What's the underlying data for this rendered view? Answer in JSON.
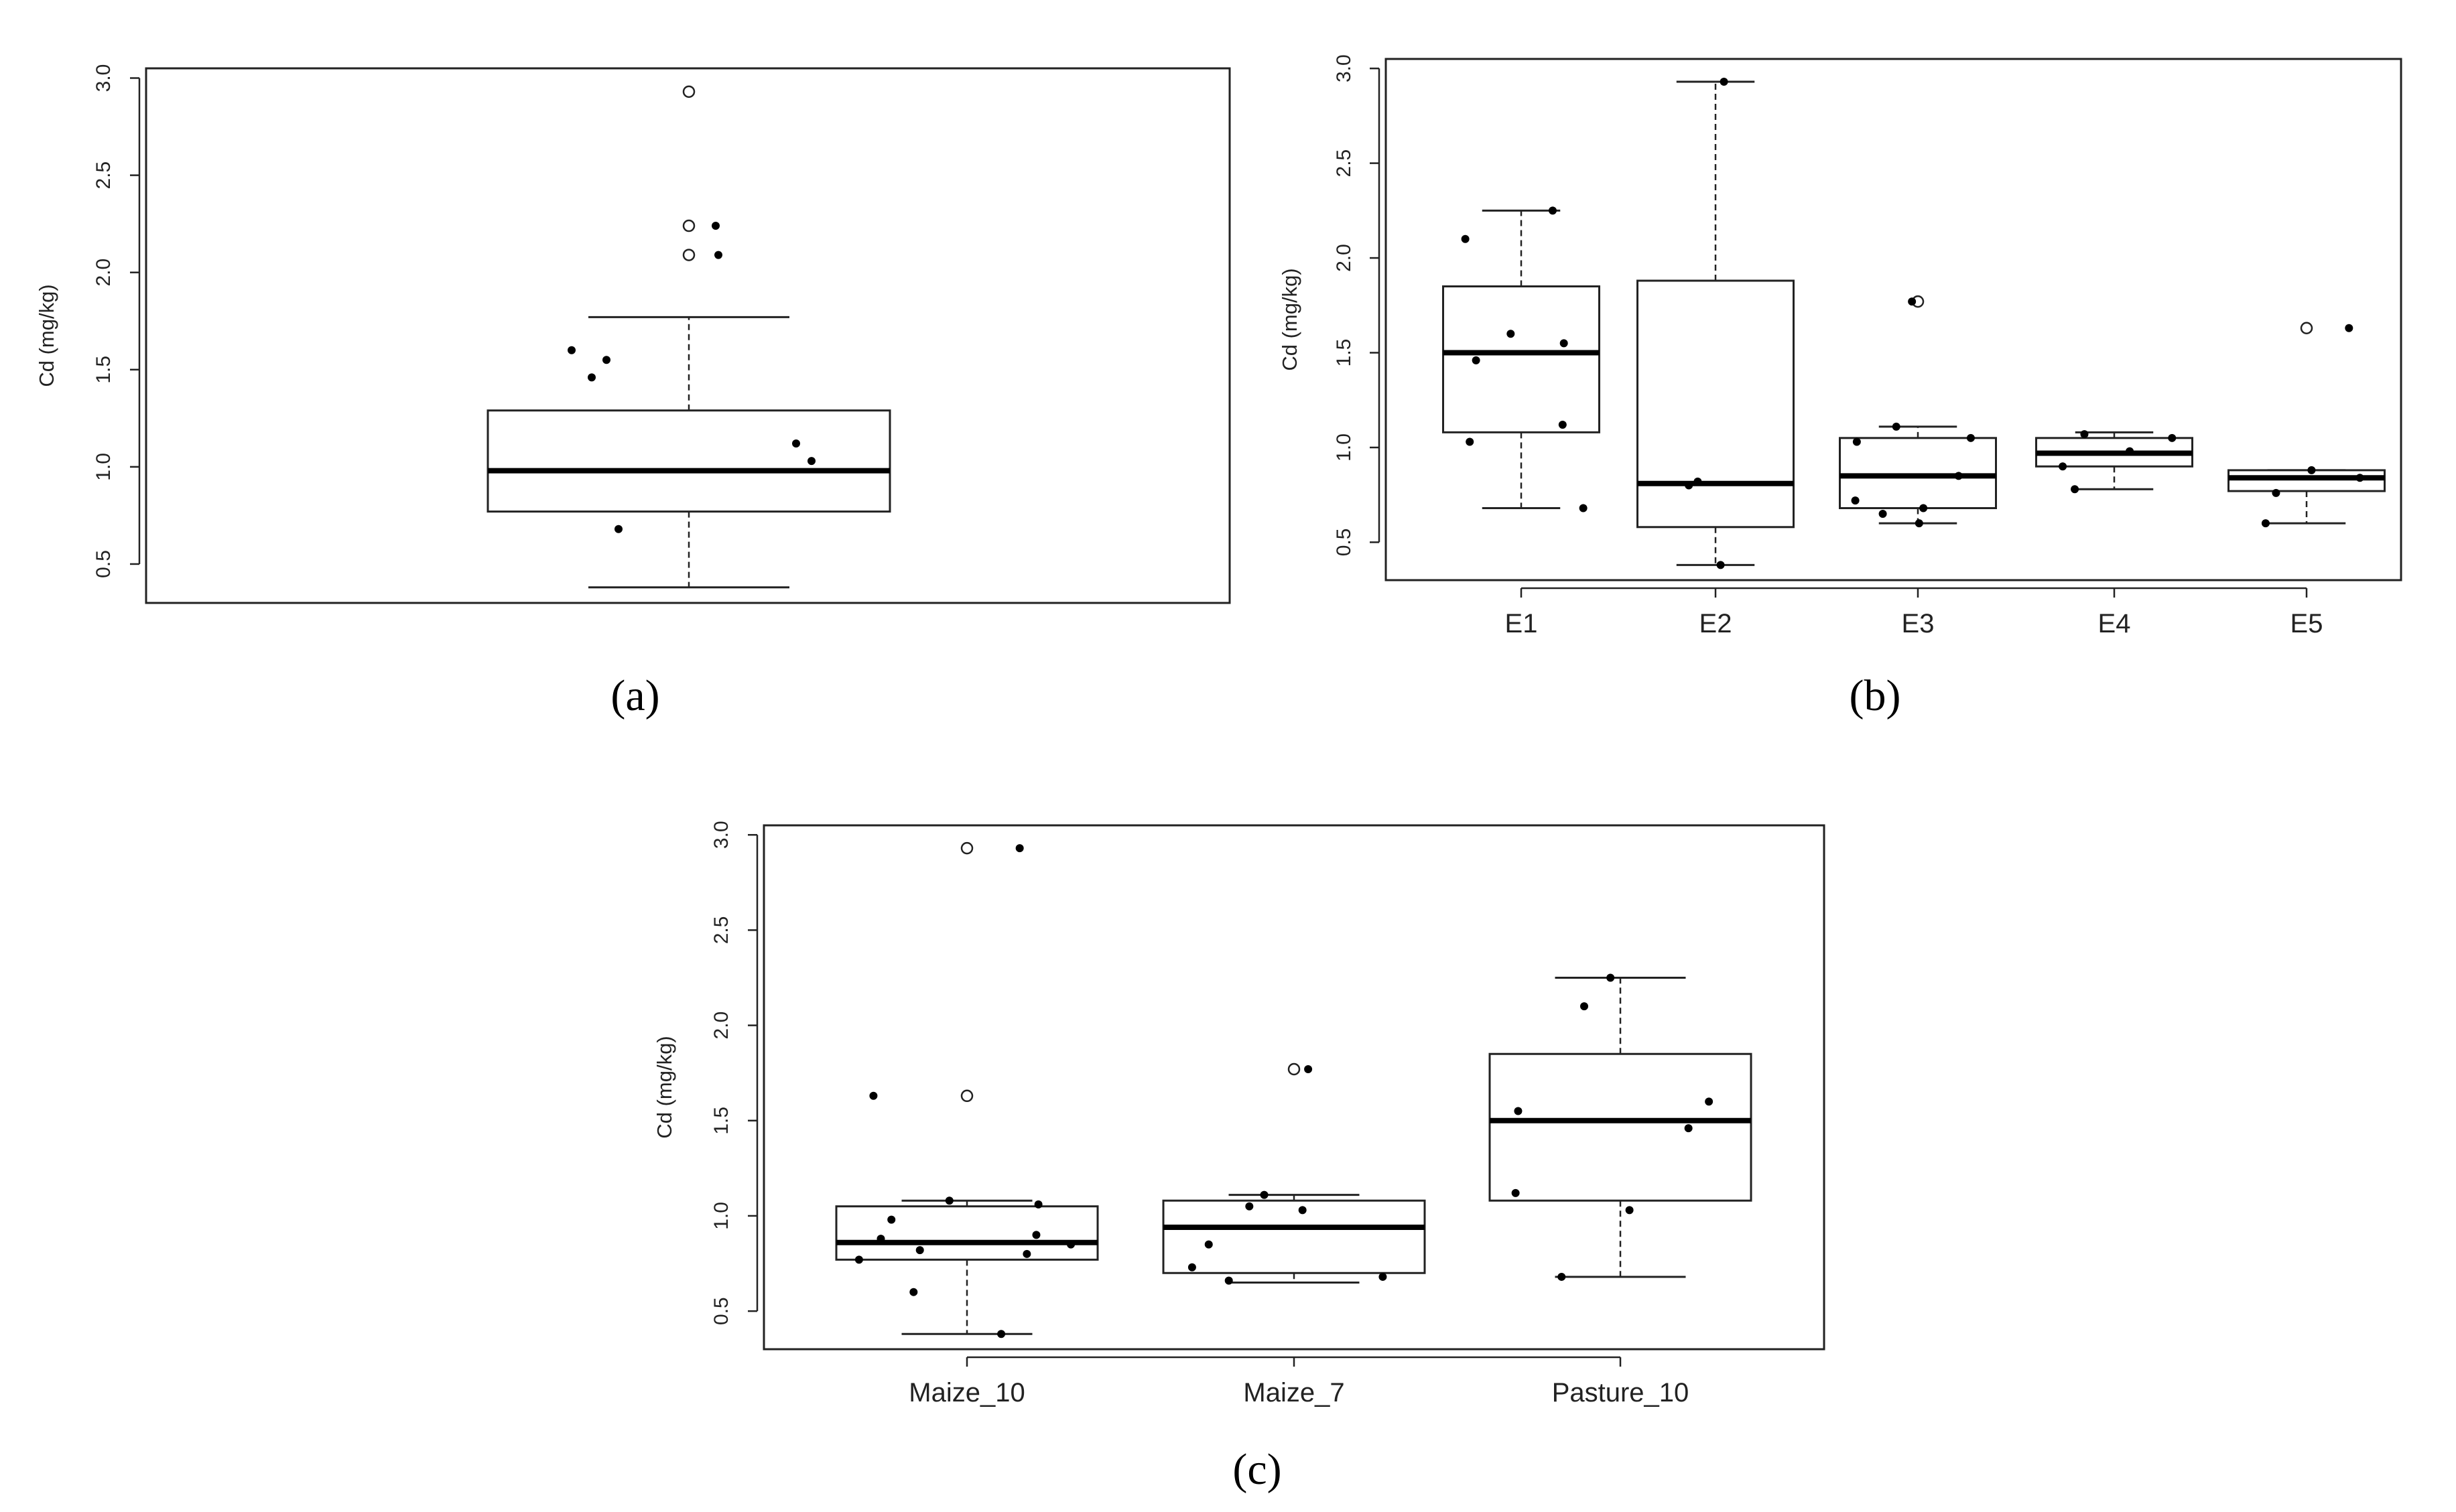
{
  "chart_data": [
    {
      "type": "box",
      "panel_label": "(a)",
      "ylabel": "Cd (mg/kg)",
      "ylim": [
        0.3,
        3.05
      ],
      "yticks": [
        "0.5",
        "1.0",
        "1.5",
        "2.0",
        "2.5",
        "3.0"
      ],
      "categories": [
        ""
      ],
      "boxes": [
        {
          "lower_whisker": 0.38,
          "q1": 0.77,
          "median": 0.98,
          "q3": 1.29,
          "upper_whisker": 1.77,
          "outliers": [
            2.93,
            2.24,
            2.09
          ]
        }
      ],
      "points": [
        [
          1.6,
          1.46,
          1.55,
          1.12,
          1.03,
          0.68,
          2.24,
          2.09
        ]
      ]
    },
    {
      "type": "box",
      "panel_label": "(b)",
      "ylabel": "Cd (mg/kg)",
      "ylim": [
        0.3,
        3.05
      ],
      "yticks": [
        "0.5",
        "1.0",
        "1.5",
        "2.0",
        "2.5",
        "3.0"
      ],
      "categories": [
        "E1",
        "E2",
        "E3",
        "E4",
        "E5"
      ],
      "boxes": [
        {
          "lower_whisker": 0.68,
          "q1": 1.08,
          "median": 1.5,
          "q3": 1.85,
          "upper_whisker": 2.25,
          "outliers": []
        },
        {
          "lower_whisker": 0.38,
          "q1": 0.58,
          "median": 0.81,
          "q3": 1.88,
          "upper_whisker": 2.93,
          "outliers": []
        },
        {
          "lower_whisker": 0.6,
          "q1": 0.68,
          "median": 0.85,
          "q3": 1.05,
          "upper_whisker": 1.11,
          "outliers": [
            1.77
          ]
        },
        {
          "lower_whisker": 0.78,
          "q1": 0.9,
          "median": 0.97,
          "q3": 1.05,
          "upper_whisker": 1.08,
          "outliers": []
        },
        {
          "lower_whisker": 0.6,
          "q1": 0.77,
          "median": 0.84,
          "q3": 0.88,
          "upper_whisker": 0.88,
          "outliers": [
            1.63
          ]
        }
      ],
      "points": [
        [
          2.25,
          2.1,
          1.6,
          1.55,
          1.46,
          1.12,
          1.03,
          0.68
        ],
        [
          2.93,
          0.82,
          0.8,
          0.38
        ],
        [
          1.77,
          1.11,
          1.05,
          1.03,
          0.85,
          0.72,
          0.68,
          0.65,
          0.6
        ],
        [
          1.07,
          1.05,
          0.98,
          0.9,
          0.78
        ],
        [
          1.63,
          0.88,
          0.84,
          0.76,
          0.6
        ]
      ]
    },
    {
      "type": "box",
      "panel_label": "(c)",
      "ylabel": "Cd (mg/kg)",
      "ylim": [
        0.3,
        3.05
      ],
      "yticks": [
        "0.5",
        "1.0",
        "1.5",
        "2.0",
        "2.5",
        "3.0"
      ],
      "categories": [
        "Maize_10",
        "Maize_7",
        "Pasture_10"
      ],
      "boxes": [
        {
          "lower_whisker": 0.38,
          "q1": 0.77,
          "median": 0.86,
          "q3": 1.05,
          "upper_whisker": 1.08,
          "outliers": [
            2.93,
            1.63
          ]
        },
        {
          "lower_whisker": 0.65,
          "q1": 0.7,
          "median": 0.94,
          "q3": 1.08,
          "upper_whisker": 1.11,
          "outliers": [
            1.77
          ]
        },
        {
          "lower_whisker": 0.68,
          "q1": 1.08,
          "median": 1.5,
          "q3": 1.85,
          "upper_whisker": 2.25,
          "outliers": []
        }
      ],
      "points": [
        [
          2.93,
          1.63,
          1.08,
          1.06,
          0.98,
          0.9,
          0.88,
          0.85,
          0.82,
          0.8,
          0.77,
          0.6,
          0.38
        ],
        [
          1.77,
          1.11,
          1.05,
          1.03,
          0.85,
          0.73,
          0.68,
          0.66
        ],
        [
          2.25,
          2.1,
          1.6,
          1.55,
          1.46,
          1.12,
          1.03,
          0.68
        ]
      ]
    }
  ]
}
